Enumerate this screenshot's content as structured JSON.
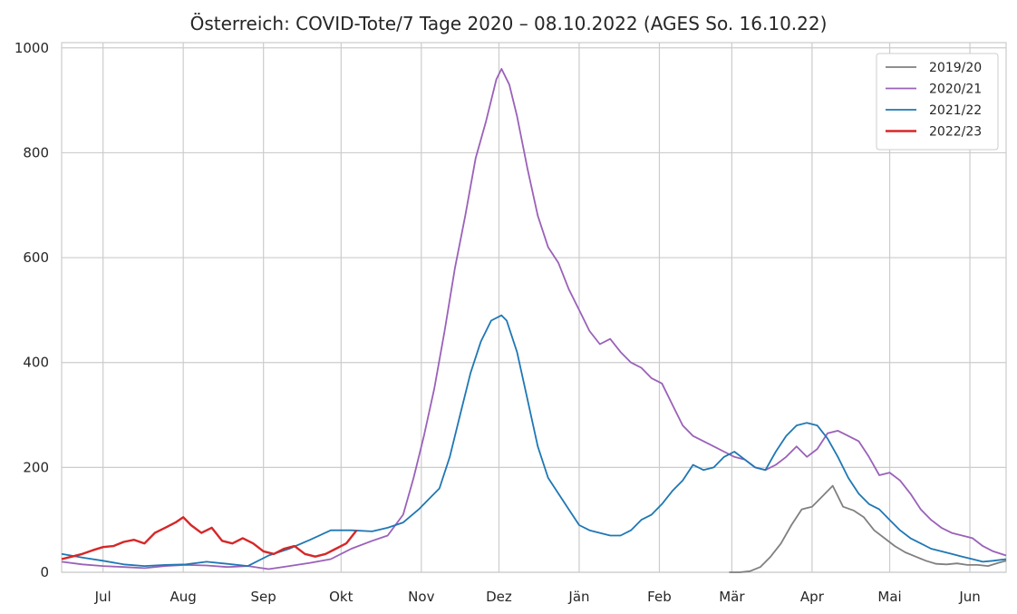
{
  "chart_data": {
    "type": "line",
    "title": "Österreich: COVID-Tote/7 Tage 2020 – 08.10.2022 (AGES So. 16.10.22)",
    "xlabel": "",
    "ylabel": "",
    "x_unit": "days since 15 Jun (season start)",
    "xlim": [
      0,
      365
    ],
    "ylim": [
      0,
      1010
    ],
    "x_ticks": [
      {
        "label": "Jul",
        "x": 16
      },
      {
        "label": "Aug",
        "x": 47
      },
      {
        "label": "Sep",
        "x": 78
      },
      {
        "label": "Okt",
        "x": 108
      },
      {
        "label": "Nov",
        "x": 139
      },
      {
        "label": "Dez",
        "x": 169
      },
      {
        "label": "Jän",
        "x": 200
      },
      {
        "label": "Feb",
        "x": 231
      },
      {
        "label": "Mär",
        "x": 259
      },
      {
        "label": "Apr",
        "x": 290
      },
      {
        "label": "Mai",
        "x": 320
      },
      {
        "label": "Jun",
        "x": 351
      }
    ],
    "y_ticks": [
      0,
      200,
      400,
      600,
      800,
      1000
    ],
    "grid": true,
    "legend_position": "top-right",
    "series": [
      {
        "name": "2019/20",
        "color": "#808080",
        "x": [
          0,
          258,
          262,
          266,
          270,
          274,
          278,
          282,
          286,
          290,
          294,
          298,
          302,
          306,
          310,
          314,
          318,
          322,
          326,
          330,
          334,
          338,
          342,
          346,
          350,
          354,
          358,
          362,
          365
        ],
        "y": [
          null,
          0,
          0,
          2,
          10,
          30,
          55,
          90,
          120,
          125,
          145,
          165,
          125,
          118,
          105,
          80,
          65,
          50,
          38,
          30,
          22,
          16,
          15,
          17,
          14,
          14,
          12,
          18,
          22
        ]
      },
      {
        "name": "2020/21",
        "color": "#9a61b9",
        "x": [
          0,
          8,
          16,
          24,
          32,
          40,
          48,
          56,
          64,
          72,
          80,
          88,
          96,
          104,
          112,
          120,
          126,
          132,
          136,
          140,
          144,
          148,
          152,
          156,
          160,
          164,
          168,
          170,
          173,
          176,
          180,
          184,
          188,
          192,
          196,
          200,
          204,
          208,
          212,
          216,
          220,
          224,
          228,
          232,
          236,
          240,
          244,
          248,
          252,
          256,
          260,
          264,
          268,
          272,
          276,
          280,
          284,
          288,
          292,
          296,
          300,
          304,
          308,
          312,
          316,
          320,
          324,
          328,
          332,
          336,
          340,
          344,
          348,
          352,
          356,
          360,
          365
        ],
        "y": [
          20,
          15,
          12,
          10,
          8,
          12,
          14,
          13,
          10,
          12,
          6,
          12,
          18,
          25,
          45,
          60,
          70,
          110,
          180,
          260,
          350,
          460,
          580,
          680,
          790,
          860,
          940,
          960,
          930,
          870,
          770,
          680,
          620,
          590,
          540,
          500,
          460,
          435,
          445,
          420,
          400,
          390,
          370,
          360,
          320,
          280,
          260,
          250,
          240,
          230,
          220,
          215,
          200,
          195,
          205,
          220,
          240,
          220,
          235,
          265,
          270,
          260,
          250,
          220,
          185,
          190,
          175,
          150,
          120,
          100,
          85,
          75,
          70,
          65,
          50,
          40,
          32
        ]
      },
      {
        "name": "2021/22",
        "color": "#1f77b4",
        "x": [
          0,
          8,
          16,
          24,
          32,
          40,
          48,
          56,
          64,
          72,
          80,
          88,
          96,
          104,
          112,
          120,
          126,
          132,
          138,
          142,
          146,
          150,
          154,
          158,
          162,
          166,
          170,
          172,
          176,
          180,
          184,
          188,
          192,
          196,
          200,
          204,
          208,
          212,
          216,
          220,
          224,
          228,
          232,
          236,
          240,
          244,
          248,
          252,
          256,
          260,
          264,
          268,
          272,
          276,
          280,
          284,
          288,
          292,
          296,
          300,
          304,
          308,
          312,
          316,
          320,
          324,
          328,
          332,
          336,
          340,
          344,
          348,
          352,
          356,
          360,
          365
        ],
        "y": [
          35,
          28,
          22,
          15,
          12,
          14,
          15,
          20,
          16,
          12,
          32,
          45,
          62,
          80,
          80,
          78,
          85,
          95,
          120,
          140,
          160,
          220,
          300,
          380,
          440,
          480,
          490,
          480,
          420,
          330,
          240,
          180,
          150,
          120,
          90,
          80,
          75,
          70,
          70,
          80,
          100,
          110,
          130,
          155,
          175,
          205,
          195,
          200,
          220,
          230,
          215,
          200,
          195,
          230,
          260,
          280,
          285,
          280,
          255,
          220,
          180,
          150,
          130,
          120,
          100,
          80,
          65,
          55,
          45,
          40,
          35,
          30,
          25,
          20,
          22,
          25
        ]
      },
      {
        "name": "2022/23",
        "color": "#d62728",
        "x": [
          0,
          4,
          8,
          12,
          16,
          20,
          24,
          28,
          32,
          36,
          40,
          44,
          47,
          50,
          54,
          58,
          62,
          66,
          70,
          74,
          78,
          82,
          86,
          90,
          94,
          98,
          102,
          106,
          110,
          114
        ],
        "y": [
          25,
          30,
          35,
          42,
          48,
          50,
          58,
          62,
          55,
          75,
          85,
          95,
          105,
          90,
          75,
          85,
          60,
          55,
          65,
          55,
          40,
          35,
          45,
          50,
          35,
          30,
          35,
          45,
          55,
          80
        ]
      }
    ]
  }
}
